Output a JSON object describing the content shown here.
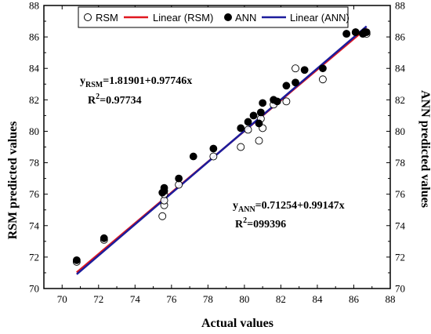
{
  "chart_data": {
    "type": "scatter",
    "title": "",
    "xlabel": "Actual values",
    "ylabel": "RSM predicted values",
    "y2label": "ANN predicted values",
    "xlim": [
      69,
      88
    ],
    "ylim": [
      70,
      88
    ],
    "x_ticks": [
      70,
      72,
      74,
      76,
      78,
      80,
      82,
      84,
      86,
      88
    ],
    "y_ticks": [
      70,
      72,
      74,
      76,
      78,
      80,
      82,
      84,
      86,
      88
    ],
    "grid": false,
    "legend_position": "top",
    "series": [
      {
        "name": "RSM",
        "marker": "open-circle",
        "color": "#000000",
        "points": [
          [
            70.8,
            71.7
          ],
          [
            72.3,
            73.1
          ],
          [
            75.5,
            74.6
          ],
          [
            75.6,
            75.3
          ],
          [
            75.6,
            75.6
          ],
          [
            75.6,
            76.0
          ],
          [
            76.4,
            76.6
          ],
          [
            78.3,
            78.4
          ],
          [
            79.8,
            79.0
          ],
          [
            80.2,
            80.1
          ],
          [
            80.8,
            79.4
          ],
          [
            80.9,
            80.8
          ],
          [
            81.0,
            80.2
          ],
          [
            81.6,
            81.7
          ],
          [
            82.3,
            81.9
          ],
          [
            82.8,
            84.0
          ],
          [
            84.3,
            83.3
          ],
          [
            85.6,
            86.2
          ],
          [
            86.1,
            86.3
          ],
          [
            86.5,
            86.2
          ],
          [
            86.6,
            86.3
          ],
          [
            86.7,
            86.2
          ]
        ]
      },
      {
        "name": "Linear (RSM)",
        "line": true,
        "color": "#e0171f",
        "intercept": 1.81901,
        "slope": 0.97746
      },
      {
        "name": "ANN",
        "marker": "filled-circle",
        "color": "#000000",
        "points": [
          [
            70.8,
            71.8
          ],
          [
            72.3,
            73.2
          ],
          [
            75.5,
            76.1
          ],
          [
            75.6,
            76.2
          ],
          [
            75.6,
            76.4
          ],
          [
            76.4,
            77.0
          ],
          [
            77.2,
            78.4
          ],
          [
            78.3,
            78.9
          ],
          [
            79.8,
            80.2
          ],
          [
            80.2,
            80.6
          ],
          [
            80.5,
            81.0
          ],
          [
            80.8,
            80.5
          ],
          [
            80.9,
            81.2
          ],
          [
            81.0,
            81.8
          ],
          [
            81.6,
            82.0
          ],
          [
            81.8,
            81.9
          ],
          [
            82.3,
            82.9
          ],
          [
            82.8,
            83.1
          ],
          [
            83.3,
            83.9
          ],
          [
            84.3,
            84.0
          ],
          [
            85.6,
            86.2
          ],
          [
            86.1,
            86.3
          ],
          [
            86.5,
            86.2
          ],
          [
            86.6,
            86.3
          ],
          [
            86.7,
            86.3
          ]
        ]
      },
      {
        "name": "Linear (ANN)",
        "line": true,
        "color": "#1c1c9c",
        "intercept": 0.71254,
        "slope": 0.99147
      }
    ],
    "annotations": {
      "rsm_eq_lhs": "y",
      "rsm_eq_sub": "RSM",
      "rsm_eq_rhs": "=1.81901+0.97746x",
      "rsm_r2_base": "R",
      "rsm_r2_sup": "2",
      "rsm_r2_value": "=0.97734",
      "ann_eq_lhs": "y",
      "ann_eq_sub": "ANN",
      "ann_eq_rhs": "=0.71254+0.99147x",
      "ann_r2_base": "R",
      "ann_r2_sup": "2",
      "ann_r2_value": "=099396"
    }
  }
}
